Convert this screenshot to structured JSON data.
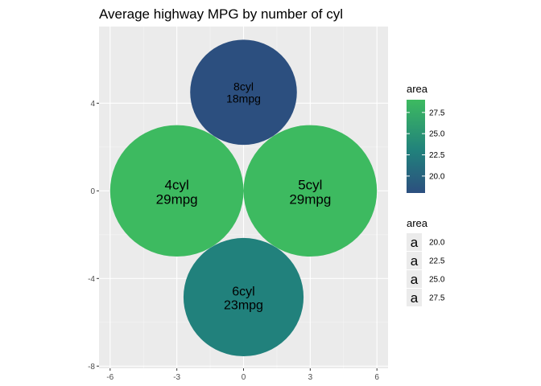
{
  "chart_data": {
    "type": "scatter",
    "title": "Average highway MPG by number of cyl",
    "xlabel": "",
    "ylabel": "",
    "xlim": [
      -6.5,
      6.5
    ],
    "ylim": [
      -8.1,
      7.5
    ],
    "x_ticks": [
      -6,
      -3,
      0,
      3,
      6
    ],
    "x_tick_labels": [
      "-6",
      "-3",
      "0",
      "3",
      "6"
    ],
    "y_ticks": [
      -8,
      -4,
      0,
      4
    ],
    "y_tick_labels": [
      "-8",
      "-4",
      "0",
      "4"
    ],
    "grid": true,
    "legend_position": "right",
    "circles": [
      {
        "cyl": "8cyl",
        "mpg": "18mpg",
        "x": 0.0,
        "y": 4.5,
        "radius": 2.4,
        "area": 18
      },
      {
        "cyl": "4cyl",
        "mpg": "29mpg",
        "x": -3.0,
        "y": 0.0,
        "radius": 3.0,
        "area": 29
      },
      {
        "cyl": "5cyl",
        "mpg": "29mpg",
        "x": 3.0,
        "y": 0.0,
        "radius": 3.0,
        "area": 29
      },
      {
        "cyl": "6cyl",
        "mpg": "23mpg",
        "x": 0.0,
        "y": -4.85,
        "radius": 2.7,
        "area": 23
      }
    ],
    "fill_legend": {
      "title": "area",
      "range": [
        18,
        29
      ],
      "breaks": [
        20.0,
        22.5,
        25.0,
        27.5
      ],
      "labels": [
        "20.0",
        "22.5",
        "25.0",
        "27.5"
      ]
    },
    "size_legend": {
      "title": "area",
      "key_glyph": "a",
      "labels": [
        "20.0",
        "22.5",
        "25.0",
        "27.5"
      ]
    },
    "colors": {
      "panel_bg": "#ebebeb",
      "grid_major": "#ffffff",
      "grid_minor": "#f5f5f5",
      "low": "#2c4f7f",
      "mid": "#21817c",
      "high": "#3dba60"
    }
  }
}
